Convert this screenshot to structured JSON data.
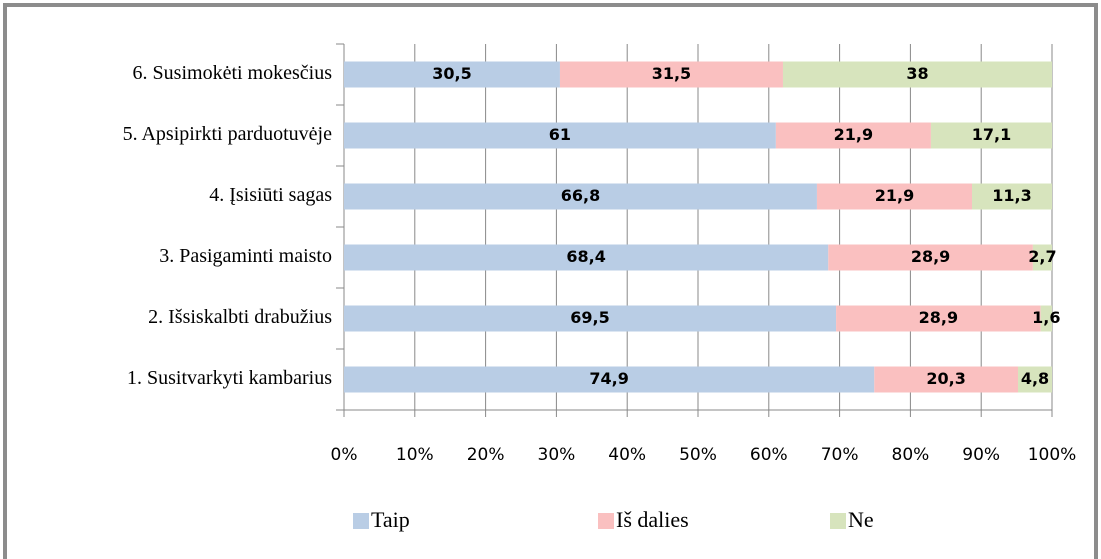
{
  "chart_data": {
    "type": "stacked-bar-horizontal",
    "categories": [
      "6. Susimokėti mokesčius",
      "5. Apsipirkti parduotuvėje",
      "4. Įsisiūti sagas",
      "3. Pasigaminti maisto",
      "2. Išsiskalbti drabužius",
      "1. Susitvarkyti kambarius"
    ],
    "series": [
      {
        "name": "Taip",
        "color": "#b9cde5",
        "values": [
          30.5,
          61,
          66.8,
          68.4,
          69.5,
          74.9
        ],
        "value_labels": [
          "30,5",
          "61",
          "66,8",
          "68,4",
          "69,5",
          "74,9"
        ]
      },
      {
        "name": "Iš dalies",
        "color": "#fac0c0",
        "values": [
          31.5,
          21.9,
          21.9,
          28.9,
          28.9,
          20.3
        ],
        "value_labels": [
          "31,5",
          "21,9",
          "21,9",
          "28,9",
          "28,9",
          "20,3"
        ]
      },
      {
        "name": "Ne",
        "color": "#d7e4bd",
        "values": [
          38,
          17.1,
          11.3,
          2.7,
          1.6,
          4.8
        ],
        "value_labels": [
          "38",
          "17,1",
          "11,3",
          "2,7",
          "1,6",
          "4,8"
        ]
      }
    ],
    "xlim": [
      0,
      100
    ],
    "xticks": [
      {
        "value": 0,
        "label": "0%"
      },
      {
        "value": 10,
        "label": "10%"
      },
      {
        "value": 20,
        "label": "20%"
      },
      {
        "value": 30,
        "label": "30%"
      },
      {
        "value": 40,
        "label": "40%"
      },
      {
        "value": 50,
        "label": "50%"
      },
      {
        "value": 60,
        "label": "60%"
      },
      {
        "value": 70,
        "label": "70%"
      },
      {
        "value": 80,
        "label": "80%"
      },
      {
        "value": 90,
        "label": "90%"
      },
      {
        "value": 100,
        "label": "100%"
      }
    ],
    "grid": true,
    "legend": "bottom"
  }
}
